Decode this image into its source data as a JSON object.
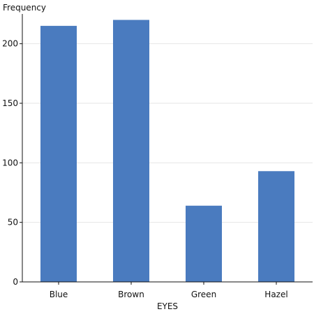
{
  "chart_data": {
    "type": "bar",
    "categories": [
      "Blue",
      "Brown",
      "Green",
      "Hazel"
    ],
    "values": [
      215,
      220,
      64,
      93
    ],
    "title": "",
    "xlabel": "EYES",
    "ylabel": "Frequency",
    "ylim": [
      0,
      225
    ],
    "yticks": [
      0,
      50,
      100,
      150,
      200
    ],
    "ytick_labels": [
      "0",
      "50",
      "100",
      "150",
      "200"
    ],
    "grid": true,
    "bar_color": "#4a7bbf",
    "grid_color": "#e6e6e6",
    "axis_color": "#111111"
  }
}
